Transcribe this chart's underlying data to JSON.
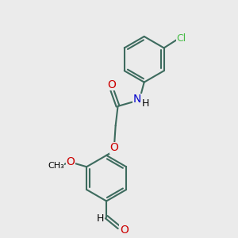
{
  "bg_color": "#ebebeb",
  "bond_color": "#3d6b5e",
  "bond_width": 1.5,
  "dbo": 0.07,
  "O_color": "#cc0000",
  "N_color": "#0000cc",
  "Cl_color": "#44bb44",
  "font_size": 9,
  "fig_size": [
    3.0,
    3.0
  ],
  "dpi": 100,
  "xlim": [
    0,
    10
  ],
  "ylim": [
    0,
    10
  ]
}
